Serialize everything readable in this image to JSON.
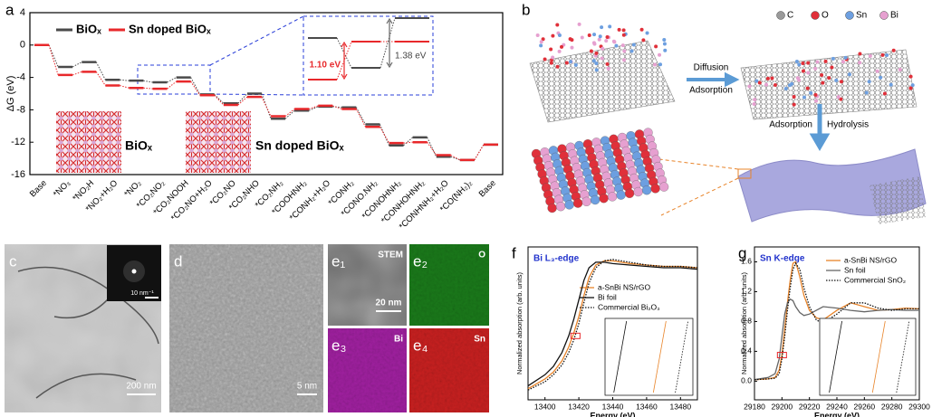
{
  "chart_data": [
    {
      "type": "step",
      "panel_label": "a",
      "ylabel": "ΔG (eV)",
      "categories": [
        "Base",
        "*NO₃",
        "*NO₂H",
        "*NO₂+H₂O",
        "*NO₂",
        "*CO₂NO₂",
        "*CO₂NOOH",
        "*CO₂NO+H₂O",
        "*CO₂NO",
        "*CO₂NHO",
        "*CO₂NH₂",
        "*COOHNH₂",
        "*CONH₂+H₂O",
        "*CONH₂",
        "*CONO.NH₂",
        "*CONOHNH₂",
        "*CONHOHNH₂",
        "*CONHNH₂+H₂O",
        "*CO(NH₂)₂",
        "Base"
      ],
      "series": [
        {
          "name": "BiOₓ",
          "color": "#4a4a4a",
          "values": [
            0,
            -2.7,
            -2.1,
            -4.3,
            -4.4,
            -4.6,
            -4.0,
            -6.1,
            -7.2,
            -6.0,
            -9.1,
            -8.1,
            -7.6,
            -7.7,
            -9.8,
            -12.4,
            -11.4,
            -13.8,
            -14.2,
            -12.3
          ]
        },
        {
          "name": "Sn doped BiOₓ",
          "color": "#e8282b",
          "values": [
            0,
            -3.7,
            -3.3,
            -5.0,
            -5.3,
            -5.4,
            -4.5,
            -6.2,
            -7.4,
            -6.4,
            -8.8,
            -7.9,
            -7.5,
            -7.9,
            -10.1,
            -12.1,
            -12.0,
            -13.6,
            -14.2,
            -12.3
          ]
        }
      ],
      "ylim": [
        -16,
        4
      ],
      "yticks": [
        4,
        0,
        -4,
        -8,
        -12,
        -16
      ],
      "annotations": [
        "1.10 eV",
        "1.38 eV"
      ],
      "structure_labels": [
        "BiOₓ",
        "Sn doped BiOₓ"
      ]
    },
    {
      "type": "line",
      "panel_label": "f",
      "title": "Bi L₃-edge",
      "xlabel": "Energy (eV)",
      "ylabel": "Normalized absorption (arb. units)",
      "x": [
        13390,
        13400,
        13405,
        13410,
        13414,
        13417,
        13420,
        13423,
        13426,
        13430,
        13435,
        13440,
        13450,
        13460,
        13470,
        13480,
        13490
      ],
      "series": [
        {
          "name": "a-SnBi NS/rGO",
          "color": "#e8842a",
          "style": "solid",
          "values": [
            0.08,
            0.15,
            0.2,
            0.28,
            0.38,
            0.48,
            0.6,
            0.75,
            0.88,
            0.97,
            1.0,
            1.0,
            0.98,
            0.97,
            0.96,
            0.96,
            0.95
          ]
        },
        {
          "name": "Bi foil",
          "color": "#111111",
          "style": "solid",
          "values": [
            0.1,
            0.18,
            0.24,
            0.34,
            0.46,
            0.58,
            0.72,
            0.86,
            0.95,
            0.99,
            0.99,
            0.98,
            0.97,
            0.96,
            0.95,
            0.95,
            0.94
          ]
        },
        {
          "name": "Commercial Bi₂O₃",
          "color": "#111111",
          "style": "dotted",
          "values": [
            0.07,
            0.13,
            0.18,
            0.25,
            0.34,
            0.43,
            0.55,
            0.7,
            0.84,
            0.95,
            1.0,
            1.01,
            0.99,
            0.97,
            0.96,
            0.96,
            0.95
          ]
        }
      ],
      "xlim": [
        13390,
        13490
      ],
      "xticks": [
        13400,
        13420,
        13440,
        13460,
        13480
      ],
      "ylim": [
        0,
        1.1
      ]
    },
    {
      "type": "line",
      "panel_label": "g",
      "title": "Sn K-edge",
      "xlabel": "Energy (eV)",
      "ylabel": "Normalized absorption (arb. units)",
      "x": [
        29180,
        29190,
        29195,
        29198,
        29200,
        29202,
        29204,
        29206,
        29208,
        29210,
        29213,
        29216,
        29220,
        29225,
        29230,
        29240,
        29250,
        29260,
        29270,
        29280,
        29290,
        29300
      ],
      "series": [
        {
          "name": "a-SnBi NS/rGO",
          "color": "#e8842a",
          "style": "solid",
          "values": [
            0.02,
            0.03,
            0.05,
            0.15,
            0.35,
            0.7,
            1.05,
            1.35,
            1.58,
            1.6,
            1.4,
            1.15,
            0.95,
            0.85,
            0.82,
            0.95,
            1.05,
            1.0,
            0.95,
            0.96,
            0.98,
            0.97
          ]
        },
        {
          "name": "Sn foil",
          "color": "#666666",
          "style": "solid",
          "values": [
            0.02,
            0.05,
            0.1,
            0.3,
            0.6,
            0.9,
            1.05,
            1.1,
            1.08,
            1.0,
            0.92,
            0.88,
            0.9,
            0.95,
            1.0,
            0.98,
            0.95,
            0.93,
            0.95,
            0.96,
            0.95,
            0.95
          ]
        },
        {
          "name": "Commercial SnO₂",
          "color": "#111111",
          "style": "dotted",
          "values": [
            0.02,
            0.03,
            0.04,
            0.1,
            0.3,
            0.6,
            0.95,
            1.25,
            1.5,
            1.58,
            1.5,
            1.25,
            1.0,
            0.82,
            0.78,
            0.9,
            1.05,
            1.05,
            0.98,
            0.95,
            0.97,
            0.97
          ]
        }
      ],
      "xlim": [
        29180,
        29300
      ],
      "xticks": [
        29180,
        29200,
        29220,
        29240,
        29260,
        29280,
        29300
      ],
      "ylim": [
        -0.25,
        1.8
      ],
      "yticks": [
        {
          "value": 0,
          "label": "0.0"
        },
        0.4,
        0.8,
        1.2,
        1.6
      ]
    }
  ],
  "schematic": {
    "panel_label": "b",
    "legend": [
      "C",
      "O",
      "Sn",
      "Bi"
    ],
    "steps": [
      "Diffusion",
      "Adsorption",
      "Adsorption",
      "Hydrolysis"
    ]
  },
  "micrographs": {
    "c": {
      "label": "c",
      "scale_bar": "200 nm",
      "inset_scale_bar": "10 nm⁻¹"
    },
    "d": {
      "label": "d",
      "scale_bar": "5 nm"
    },
    "e1": {
      "label": "e₁",
      "channel": "STEM",
      "scale_bar": "20 nm"
    },
    "e2": {
      "label": "e₂",
      "channel": "O"
    },
    "e3": {
      "label": "e₃",
      "channel": "Bi"
    },
    "e4": {
      "label": "e₄",
      "channel": "Sn"
    }
  }
}
